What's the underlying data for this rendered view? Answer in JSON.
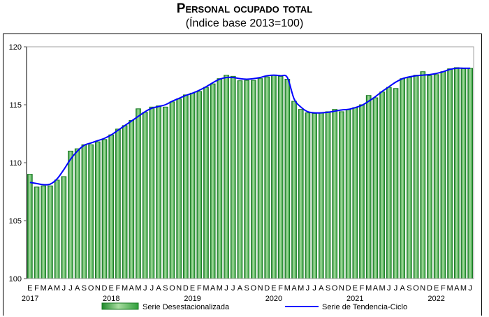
{
  "chart_data": {
    "type": "bar",
    "title": "Personal ocupado total",
    "subtitle": "(Índice base 2013=100)",
    "xlabel": "",
    "ylabel": "",
    "ylim": [
      100,
      120
    ],
    "yticks": [
      "100",
      "105",
      "110",
      "115",
      "120"
    ],
    "grid": false,
    "month_labels": [
      "E",
      "F",
      "M",
      "A",
      "M",
      "J",
      "J",
      "A",
      "S",
      "O",
      "N",
      "D"
    ],
    "years": [
      "2017",
      "2018",
      "2019",
      "2020",
      "2021",
      "2022"
    ],
    "legend_position": "bottom",
    "series": [
      {
        "name": "Serie Desestacionalizada",
        "type": "bar",
        "color": "#2e9e3a",
        "values": [
          109.0,
          107.9,
          108.0,
          108.0,
          108.5,
          108.8,
          111.0,
          111.2,
          111.55,
          111.55,
          111.8,
          112.0,
          112.4,
          112.9,
          113.2,
          113.65,
          114.65,
          114.35,
          114.8,
          114.9,
          114.8,
          115.25,
          115.5,
          115.85,
          116.0,
          116.15,
          116.5,
          116.8,
          117.25,
          117.55,
          117.45,
          117.07,
          117.1,
          117.1,
          117.25,
          117.4,
          117.55,
          117.45,
          117.2,
          115.3,
          114.6,
          114.3,
          114.25,
          114.3,
          114.4,
          114.6,
          114.4,
          114.6,
          114.75,
          115.0,
          115.8,
          115.6,
          116.1,
          116.5,
          116.4,
          117.25,
          117.35,
          117.55,
          117.85,
          117.5,
          117.6,
          117.85,
          118.1,
          118.2,
          118.1,
          118.15
        ]
      },
      {
        "name": "Serie de Tendencia-Ciclo",
        "type": "line",
        "color": "#0000ff",
        "values": [
          108.3,
          108.2,
          108.1,
          108.15,
          108.6,
          109.4,
          110.3,
          111.0,
          111.5,
          111.7,
          111.9,
          112.1,
          112.4,
          112.8,
          113.2,
          113.6,
          114.0,
          114.4,
          114.7,
          114.85,
          115.0,
          115.3,
          115.55,
          115.8,
          116.0,
          116.25,
          116.55,
          116.9,
          117.2,
          117.35,
          117.35,
          117.25,
          117.2,
          117.25,
          117.35,
          117.5,
          117.55,
          117.5,
          117.35,
          115.5,
          114.8,
          114.4,
          114.3,
          114.3,
          114.35,
          114.45,
          114.55,
          114.6,
          114.75,
          114.95,
          115.3,
          115.7,
          116.15,
          116.55,
          116.95,
          117.25,
          117.4,
          117.5,
          117.55,
          117.6,
          117.7,
          117.85,
          118.05,
          118.15,
          118.15,
          118.15
        ]
      }
    ]
  }
}
